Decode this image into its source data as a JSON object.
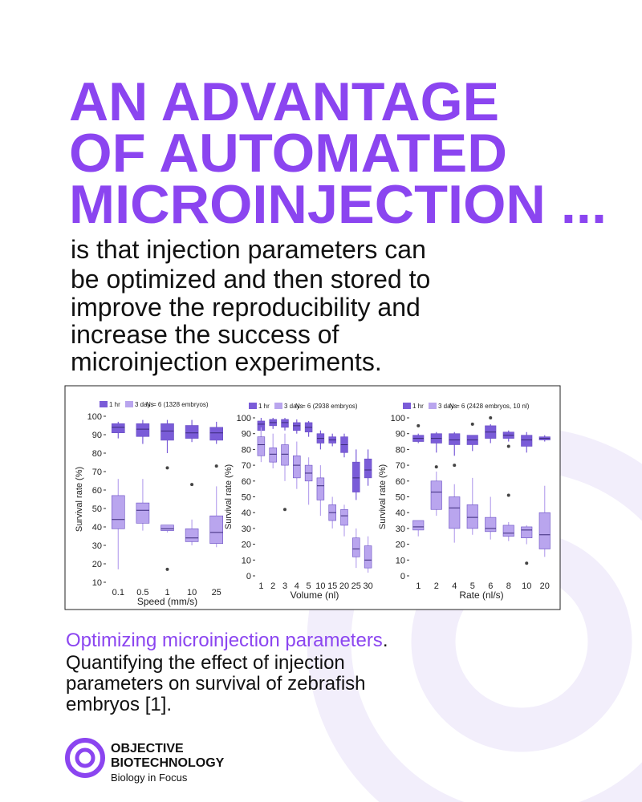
{
  "header": {
    "title_lines": [
      "AN ADVANTAGE",
      "OF AUTOMATED",
      "MICROINJECTION ..."
    ],
    "body_lines": [
      "is that injection parameters can",
      "be optimized and then stored to",
      "improve the reproducibility and",
      "increase the success of",
      "microinjection experiments."
    ]
  },
  "chart_data": [
    {
      "type": "box",
      "note": "N = 6 (1328 embryos)",
      "x_label": "Speed (mm/s)",
      "y_label": "Survival rate (%)",
      "categories": [
        "0.1",
        "0.5",
        "1",
        "10",
        "25"
      ],
      "ylim": [
        10,
        100
      ],
      "yticks": [
        10,
        20,
        30,
        40,
        50,
        60,
        70,
        80,
        90,
        100
      ],
      "series": [
        {
          "name": "1 hr",
          "color": "#7a5cd8",
          "whisker_low": [
            88,
            85,
            80,
            86,
            85
          ],
          "q1": [
            91,
            89,
            87,
            88,
            87
          ],
          "median": [
            94,
            93,
            92,
            91,
            91
          ],
          "q3": [
            96,
            96,
            96,
            95,
            94
          ],
          "whisker_high": [
            97,
            98,
            98,
            98,
            97
          ],
          "outliers": [
            [],
            [],
            [],
            [],
            [
              73
            ]
          ]
        },
        {
          "name": "3 days",
          "color": "#b9a5ee",
          "whisker_low": [
            17,
            38,
            37,
            30,
            29
          ],
          "q1": [
            39,
            42,
            38,
            32,
            31
          ],
          "median": [
            44,
            49,
            39,
            34,
            37
          ],
          "q3": [
            57,
            53,
            41,
            39,
            46
          ],
          "whisker_high": [
            66,
            66,
            41,
            44,
            62
          ],
          "outliers": [
            [],
            [],
            [
              72,
              17
            ],
            [
              63
            ],
            []
          ]
        }
      ]
    },
    {
      "type": "box",
      "note": "N = 6 (2938 embryos)",
      "x_label": "Volume (nl)",
      "y_label": "Survival rate (%)",
      "categories": [
        "1",
        "2",
        "3",
        "4",
        "5",
        "10",
        "15",
        "20",
        "25",
        "30"
      ],
      "ylim": [
        0,
        100
      ],
      "yticks": [
        0,
        10,
        20,
        30,
        40,
        50,
        60,
        70,
        80,
        90,
        100
      ],
      "series": [
        {
          "name": "1 hr",
          "color": "#7a5cd8",
          "whisker_low": [
            88,
            93,
            92,
            90,
            88,
            80,
            82,
            75,
            48,
            57
          ],
          "q1": [
            92,
            95,
            94,
            92,
            91,
            84,
            84,
            78,
            53,
            62
          ],
          "median": [
            96,
            97,
            97,
            95,
            94,
            87,
            86,
            83,
            62,
            67
          ],
          "q3": [
            98,
            99,
            99,
            97,
            97,
            90,
            88,
            88,
            72,
            74
          ],
          "whisker_high": [
            100,
            100,
            100,
            99,
            98,
            92,
            90,
            90,
            80,
            80
          ],
          "outliers": [
            [],
            [],
            [],
            [],
            [],
            [],
            [],
            [],
            [],
            []
          ]
        },
        {
          "name": "3 days",
          "color": "#b9a5ee",
          "whisker_low": [
            72,
            68,
            60,
            55,
            45,
            38,
            30,
            25,
            5,
            2
          ],
          "q1": [
            76,
            72,
            70,
            62,
            60,
            48,
            35,
            32,
            12,
            5
          ],
          "median": [
            83,
            77,
            77,
            70,
            65,
            57,
            40,
            38,
            17,
            10
          ],
          "q3": [
            88,
            81,
            83,
            76,
            70,
            62,
            45,
            42,
            24,
            19
          ],
          "whisker_high": [
            94,
            90,
            90,
            85,
            75,
            70,
            50,
            45,
            30,
            25
          ],
          "outliers": [
            [],
            [],
            [
              42
            ],
            [],
            [],
            [],
            [],
            [],
            [],
            []
          ]
        }
      ]
    },
    {
      "type": "box",
      "note": "N = 6 (2428 embryos, 10 nl)",
      "x_label": "Rate (nl/s)",
      "y_label": "Survival rate (%)",
      "categories": [
        "1",
        "2",
        "4",
        "5",
        "6",
        "8",
        "10",
        "20"
      ],
      "ylim": [
        0,
        100
      ],
      "yticks": [
        0,
        10,
        20,
        30,
        40,
        50,
        60,
        70,
        80,
        90,
        100
      ],
      "series": [
        {
          "name": "1 hr",
          "color": "#7a5cd8",
          "whisker_low": [
            84,
            78,
            76,
            79,
            84,
            85,
            78,
            85
          ],
          "q1": [
            85,
            84,
            83,
            83,
            87,
            87,
            82,
            86
          ],
          "median": [
            87,
            87,
            86,
            86,
            91,
            89,
            86,
            87
          ],
          "q3": [
            89,
            90,
            90,
            89,
            95,
            91,
            89,
            88
          ],
          "whisker_high": [
            90,
            91,
            91,
            89,
            96,
            92,
            91,
            89
          ],
          "outliers": [
            [
              95
            ],
            [
              69
            ],
            [
              70
            ],
            [
              96
            ],
            [
              100
            ],
            [
              82
            ],
            [],
            []
          ]
        },
        {
          "name": "3 days",
          "color": "#b9a5ee",
          "whisker_low": [
            25,
            38,
            21,
            26,
            23,
            22,
            20,
            12
          ],
          "q1": [
            29,
            42,
            30,
            30,
            28,
            25,
            24,
            17
          ],
          "median": [
            31,
            53,
            43,
            37,
            30,
            27,
            29,
            26
          ],
          "q3": [
            35,
            60,
            50,
            45,
            37,
            32,
            31,
            40
          ],
          "whisker_high": [
            35,
            66,
            58,
            62,
            50,
            34,
            32,
            57
          ],
          "outliers": [
            [],
            [],
            [],
            [],
            [],
            [
              51
            ],
            [
              8
            ],
            []
          ]
        }
      ]
    }
  ],
  "caption": {
    "highlight": "Optimizing microinjection parameters",
    "highlight_end": ".",
    "lines": [
      "Quantifying the effect of injection",
      "parameters on survival of zebrafish",
      "embryos [1]."
    ]
  },
  "logo": {
    "name_lines": [
      "OBJECTIVE",
      "BIOTECHNOLOGY"
    ],
    "tagline": "Biology in Focus"
  }
}
